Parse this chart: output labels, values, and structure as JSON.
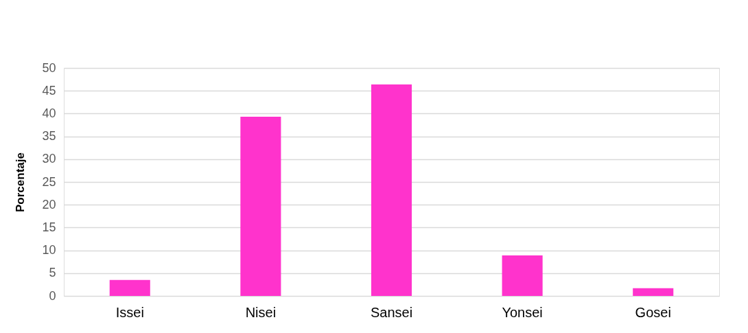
{
  "chart_data": {
    "type": "bar",
    "ylabel": "Porcentaje",
    "categories": [
      "Issei",
      "Nisei",
      "Sansei",
      "Yonsei",
      "Gosei"
    ],
    "values": [
      3.5,
      39.3,
      46.4,
      8.9,
      1.7
    ],
    "color": "#ff33cc",
    "ylim": [
      0,
      50
    ],
    "yticks": [
      0,
      5,
      10,
      15,
      20,
      25,
      30,
      35,
      40,
      45,
      50
    ],
    "grid": "y"
  }
}
